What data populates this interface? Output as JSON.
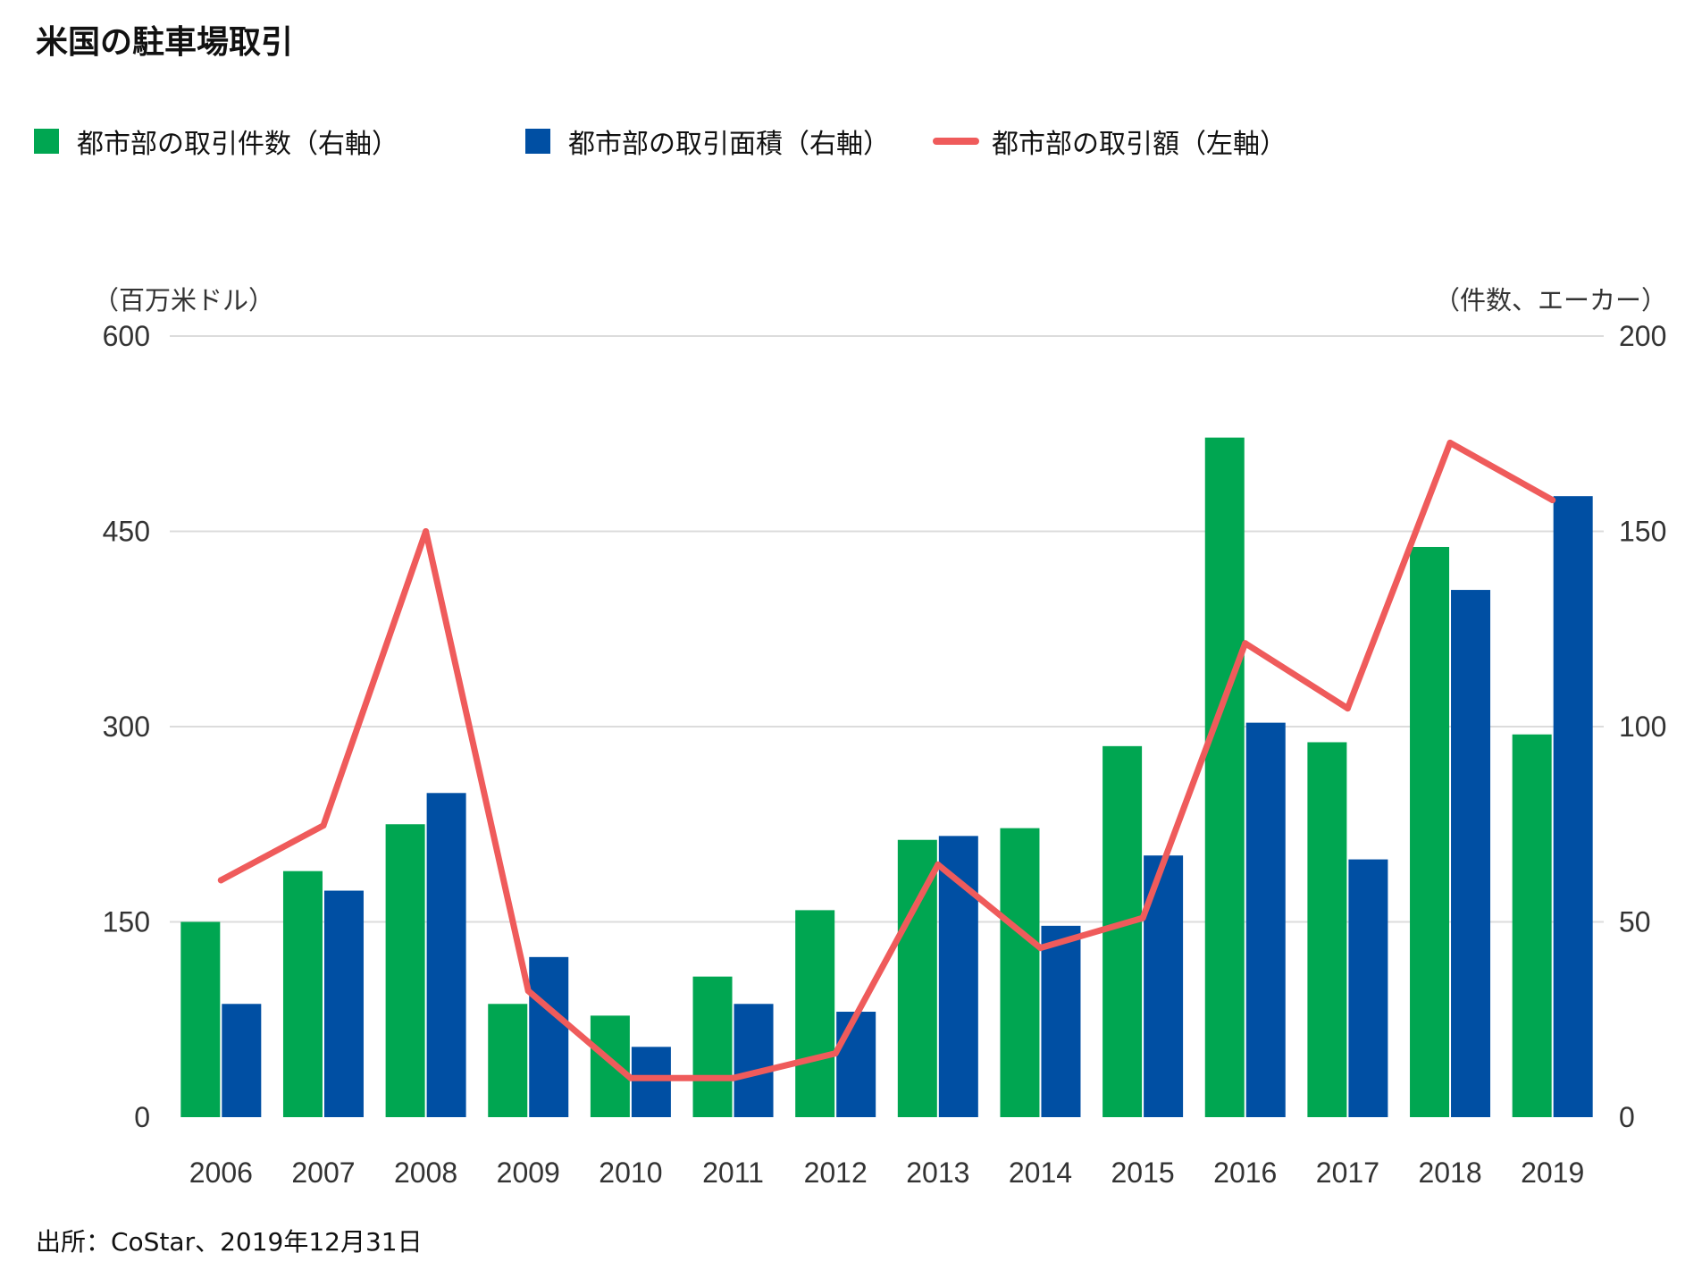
{
  "title": "米国の駐車場取引",
  "legend": {
    "count": {
      "label": "都市部の取引件数（右軸）",
      "color": "#00a651"
    },
    "area": {
      "label": "都市部の取引面積（右軸）",
      "color": "#004fa3"
    },
    "amount": {
      "label": "都市部の取引額（左軸）",
      "color": "#ef5b5b"
    }
  },
  "source": "出所：CoStar、2019年12月31日",
  "chart_data": {
    "type": "bar",
    "categories": [
      "2006",
      "2007",
      "2008",
      "2009",
      "2010",
      "2011",
      "2012",
      "2013",
      "2014",
      "2015",
      "2016",
      "2017",
      "2018",
      "2019"
    ],
    "series": [
      {
        "name": "都市部の取引件数（右軸）",
        "axis": "right",
        "kind": "bar",
        "color": "#00a651",
        "values": [
          50,
          63,
          75,
          29,
          26,
          36,
          53,
          71,
          74,
          95,
          174,
          96,
          146,
          98
        ]
      },
      {
        "name": "都市部の取引面積（右軸）",
        "axis": "right",
        "kind": "bar",
        "color": "#004fa3",
        "values": [
          29,
          58,
          83,
          41,
          18,
          29,
          27,
          72,
          49,
          67,
          101,
          66,
          135,
          159
        ]
      },
      {
        "name": "都市部の取引額（左軸）",
        "axis": "left",
        "kind": "line",
        "color": "#ef5b5b",
        "values": [
          182,
          224,
          450,
          97,
          30,
          30,
          49,
          194,
          130,
          153,
          364,
          314,
          518,
          474
        ]
      }
    ],
    "y_left": {
      "label": "（百万米ドル）",
      "min": 0,
      "max": 600,
      "ticks": [
        "0",
        "150",
        "300",
        "450",
        "600"
      ]
    },
    "y_right": {
      "label": "（件数、エーカー）",
      "min": 0,
      "max": 200,
      "ticks": [
        "0",
        "50",
        "100",
        "150",
        "200"
      ]
    },
    "grid": true,
    "legend_position": "top-left"
  }
}
